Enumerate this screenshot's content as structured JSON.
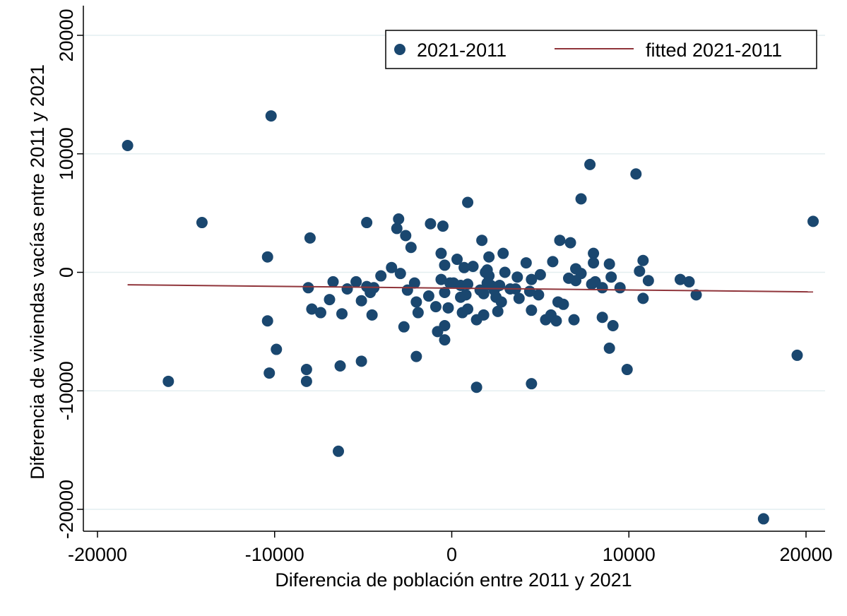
{
  "chart_data": {
    "type": "scatter",
    "xlabel": "Diferencia de población entre 2011 y 2021",
    "ylabel": "Diferencia de viviendas vacías entre 2011 y 2021",
    "xlim": [
      -20000,
      20000
    ],
    "ylim": [
      -20000,
      20000
    ],
    "x_ticks": [
      -20000,
      -10000,
      0,
      10000,
      20000
    ],
    "x_tick_labels": [
      "-20000",
      "-10000",
      "0",
      "10000",
      "20000"
    ],
    "y_ticks": [
      -20000,
      -10000,
      0,
      10000,
      20000
    ],
    "y_tick_labels": [
      "-20000",
      "-10000",
      "0",
      "10000",
      "20000"
    ],
    "grid": "horizontal",
    "legend_position": "top-right",
    "colors": {
      "points": "#1a476f",
      "fitted": "#90353b",
      "grid": "#e4eef0"
    },
    "series": [
      {
        "name": "2021-2011",
        "kind": "scatter",
        "points": [
          [
            -18300,
            10700
          ],
          [
            -10200,
            13200
          ],
          [
            -14100,
            4200
          ],
          [
            -16000,
            -9200
          ],
          [
            -10400,
            1300
          ],
          [
            -10400,
            -4100
          ],
          [
            -10300,
            -8500
          ],
          [
            -9900,
            -6500
          ],
          [
            -8200,
            -8200
          ],
          [
            -8200,
            -9200
          ],
          [
            -8000,
            2900
          ],
          [
            -8100,
            -1300
          ],
          [
            -7900,
            -3100
          ],
          [
            -7400,
            -3400
          ],
          [
            -6900,
            -2300
          ],
          [
            -6700,
            -800
          ],
          [
            -6400,
            -15100
          ],
          [
            -6300,
            -7900
          ],
          [
            -6200,
            -3500
          ],
          [
            -5900,
            -1400
          ],
          [
            -5400,
            -800
          ],
          [
            -5100,
            -7500
          ],
          [
            -5100,
            -2400
          ],
          [
            -4800,
            4200
          ],
          [
            -4800,
            -1200
          ],
          [
            -4600,
            -1700
          ],
          [
            -4500,
            -3600
          ],
          [
            -4400,
            -1300
          ],
          [
            -4000,
            -300
          ],
          [
            -3400,
            400
          ],
          [
            -3100,
            3700
          ],
          [
            -3000,
            4500
          ],
          [
            -2900,
            -100
          ],
          [
            -2700,
            -4600
          ],
          [
            -2600,
            3100
          ],
          [
            -2500,
            -1500
          ],
          [
            -2300,
            2100
          ],
          [
            -2100,
            -900
          ],
          [
            -2000,
            -2500
          ],
          [
            -2000,
            -7100
          ],
          [
            -1900,
            -3400
          ],
          [
            -1300,
            -2000
          ],
          [
            -1200,
            4100
          ],
          [
            -900,
            -2900
          ],
          [
            -800,
            -5000
          ],
          [
            -600,
            1600
          ],
          [
            -600,
            -600
          ],
          [
            -500,
            3900
          ],
          [
            -400,
            600
          ],
          [
            -400,
            -1700
          ],
          [
            -400,
            -4500
          ],
          [
            -400,
            -5700
          ],
          [
            -200,
            -3000
          ],
          [
            -100,
            -900
          ],
          [
            100,
            -900
          ],
          [
            300,
            1100
          ],
          [
            500,
            -1100
          ],
          [
            500,
            -2100
          ],
          [
            600,
            -3400
          ],
          [
            700,
            400
          ],
          [
            800,
            -1900
          ],
          [
            900,
            -3100
          ],
          [
            900,
            5900
          ],
          [
            900,
            -1000
          ],
          [
            1200,
            500
          ],
          [
            1400,
            -4000
          ],
          [
            1400,
            -9700
          ],
          [
            1600,
            -1500
          ],
          [
            1700,
            2700
          ],
          [
            1800,
            -3600
          ],
          [
            1800,
            -1800
          ],
          [
            1900,
            0
          ],
          [
            2000,
            -900
          ],
          [
            2000,
            200
          ],
          [
            2100,
            1300
          ],
          [
            2100,
            -300
          ],
          [
            2200,
            -1100
          ],
          [
            2400,
            -1500
          ],
          [
            2500,
            -2100
          ],
          [
            2600,
            -3300
          ],
          [
            2700,
            -1100
          ],
          [
            2800,
            -2500
          ],
          [
            2900,
            1600
          ],
          [
            3000,
            0
          ],
          [
            3300,
            -1400
          ],
          [
            3600,
            -1400
          ],
          [
            3700,
            -400
          ],
          [
            3800,
            -2200
          ],
          [
            4200,
            800
          ],
          [
            4400,
            -1600
          ],
          [
            4500,
            -3200
          ],
          [
            4500,
            -600
          ],
          [
            4500,
            -9400
          ],
          [
            4900,
            -1900
          ],
          [
            5000,
            -200
          ],
          [
            5300,
            -4000
          ],
          [
            5600,
            -3600
          ],
          [
            5700,
            900
          ],
          [
            5900,
            -4100
          ],
          [
            6000,
            -2500
          ],
          [
            6100,
            2700
          ],
          [
            6300,
            -2700
          ],
          [
            6600,
            -500
          ],
          [
            6700,
            2500
          ],
          [
            6900,
            -4000
          ],
          [
            7000,
            300
          ],
          [
            7000,
            -700
          ],
          [
            7300,
            6200
          ],
          [
            7300,
            -100
          ],
          [
            7800,
            9100
          ],
          [
            7900,
            -1000
          ],
          [
            8000,
            1600
          ],
          [
            8000,
            800
          ],
          [
            8100,
            -800
          ],
          [
            8500,
            -1300
          ],
          [
            8500,
            -3800
          ],
          [
            8900,
            -6400
          ],
          [
            8900,
            700
          ],
          [
            9000,
            -400
          ],
          [
            9100,
            -4500
          ],
          [
            9500,
            -1300
          ],
          [
            9900,
            -8200
          ],
          [
            10400,
            8300
          ],
          [
            10600,
            100
          ],
          [
            10800,
            1000
          ],
          [
            10800,
            -2200
          ],
          [
            11100,
            -700
          ],
          [
            12900,
            -600
          ],
          [
            13400,
            -800
          ],
          [
            13800,
            -1900
          ],
          [
            17600,
            -20800
          ],
          [
            19500,
            -7000
          ],
          [
            20400,
            4300
          ]
        ]
      },
      {
        "name": "fitted 2021-2011",
        "kind": "line",
        "points": [
          [
            -18300,
            -1050
          ],
          [
            20400,
            -1650
          ]
        ]
      }
    ]
  }
}
